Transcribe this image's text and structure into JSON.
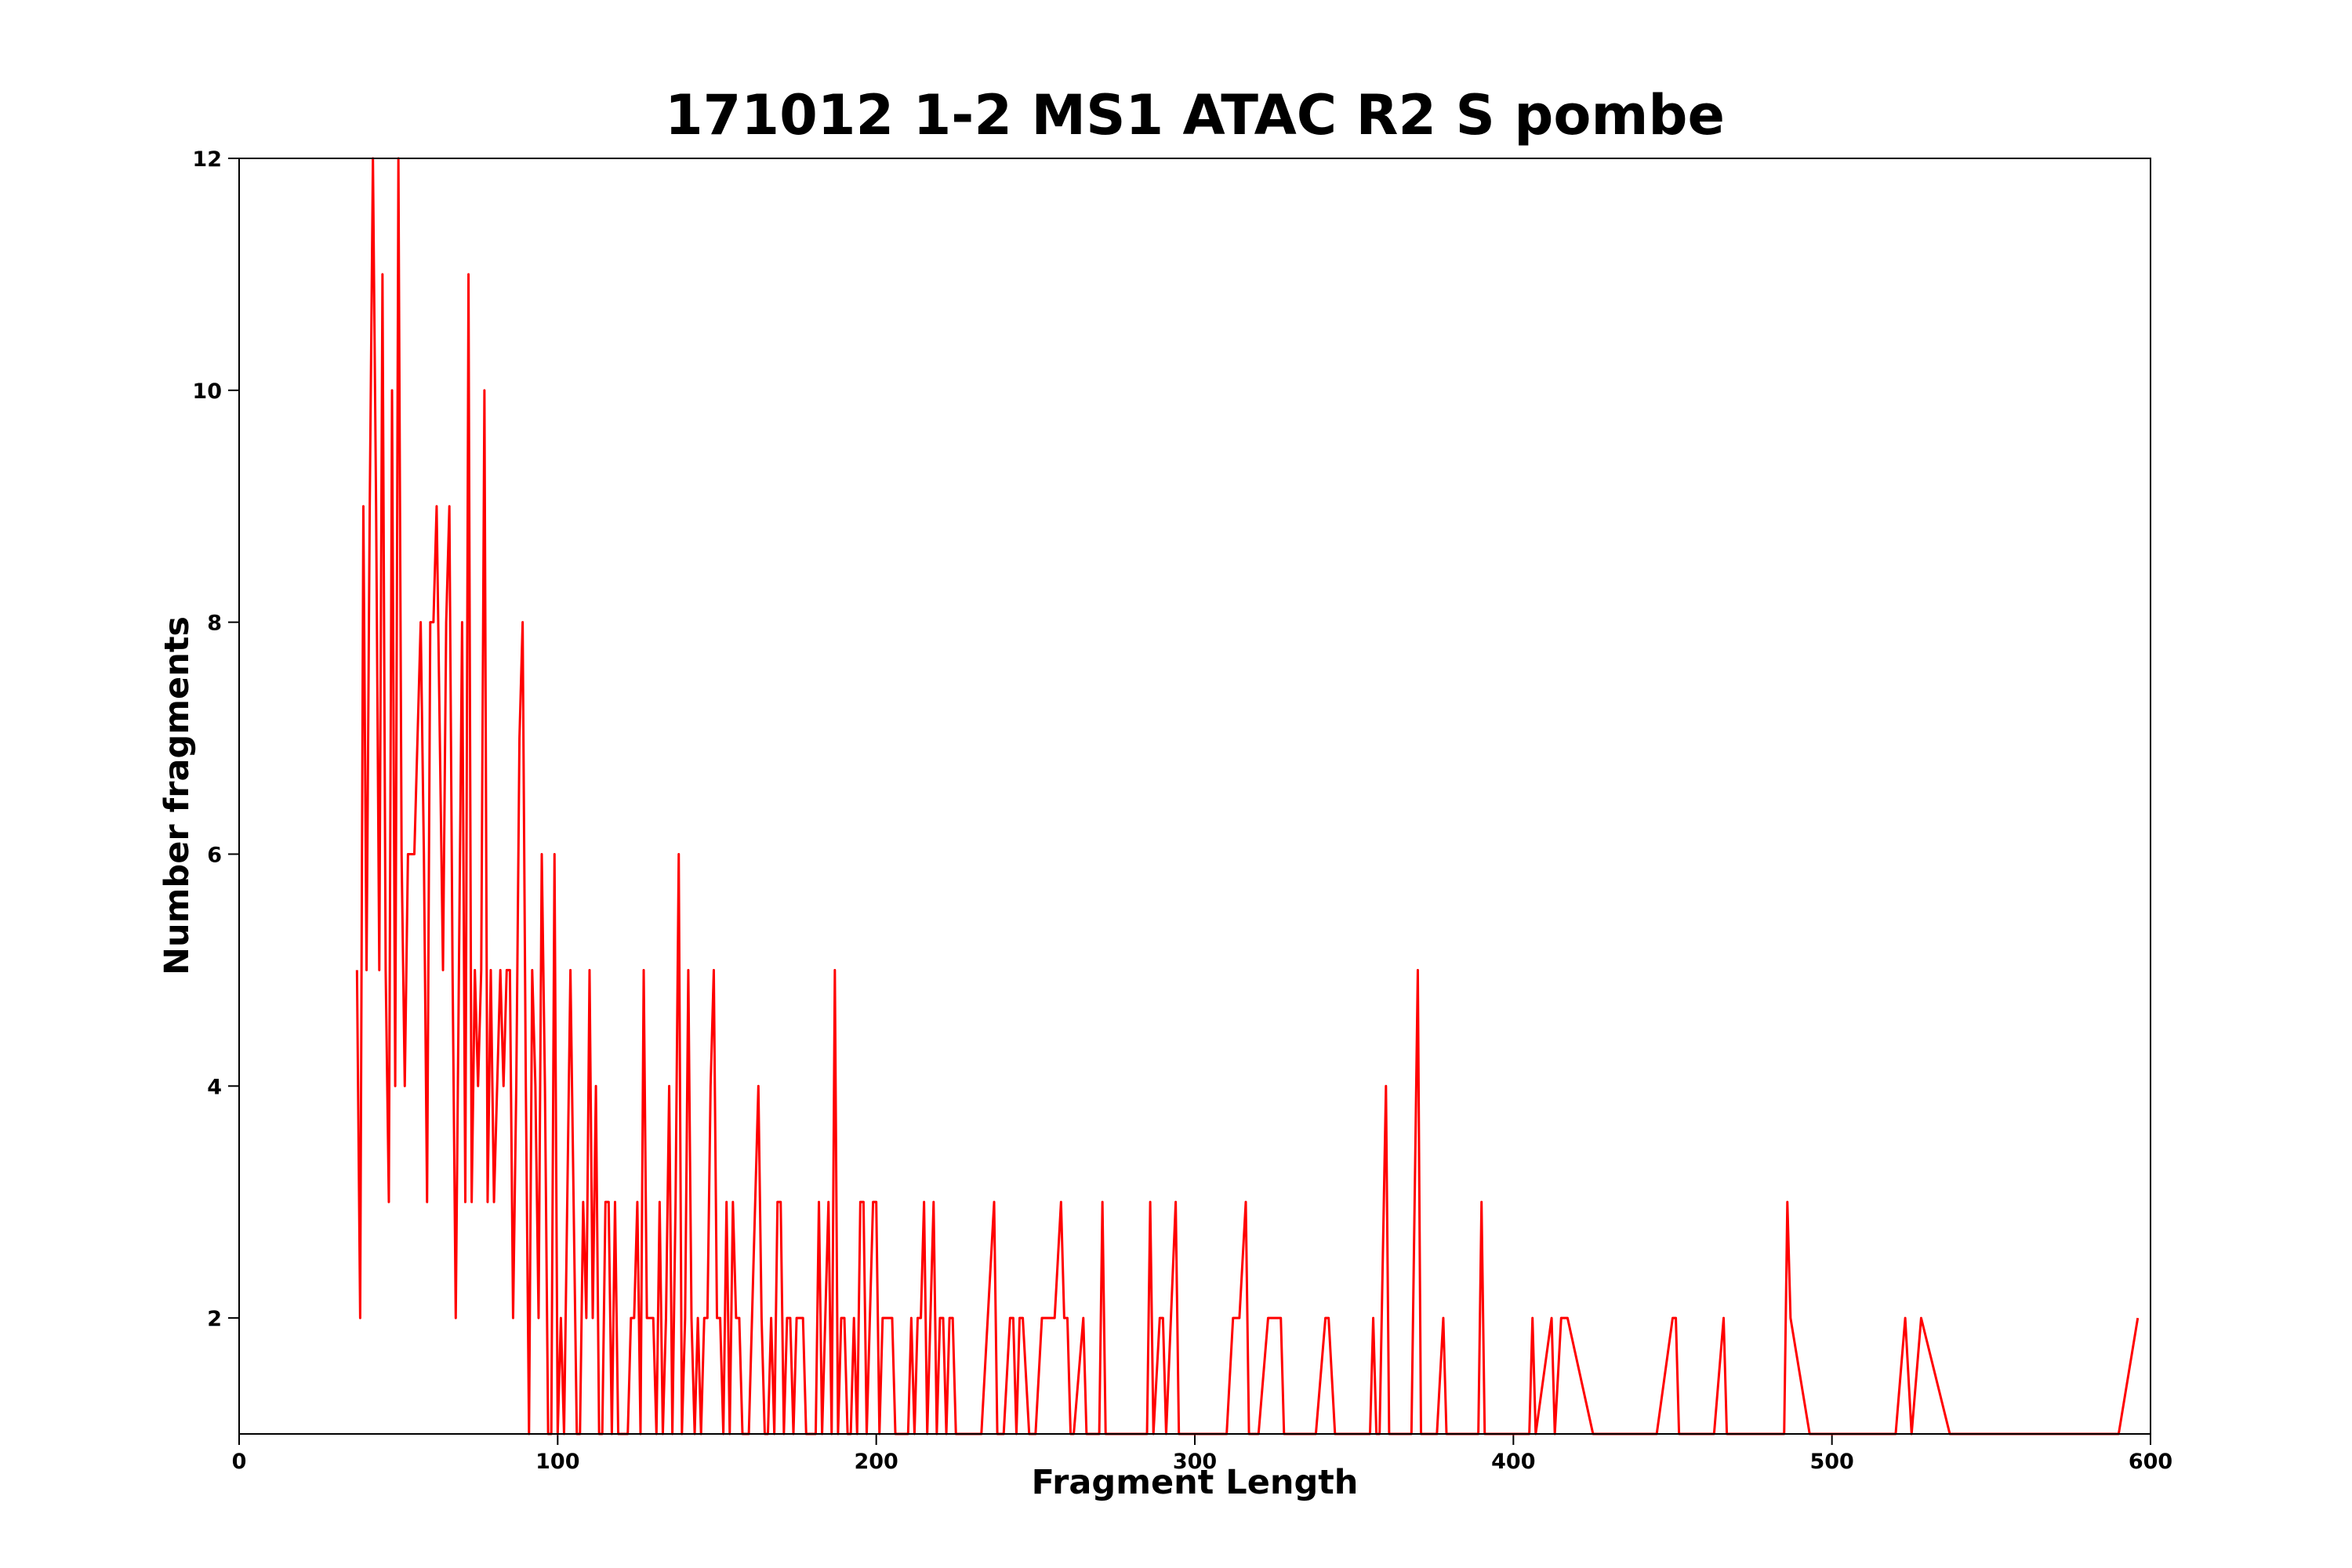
{
  "chart_data": {
    "type": "line",
    "title": "171012 1-2 MS1 ATAC R2 S pombe",
    "x_label": "Fragment Length",
    "y_label": "Number fragments",
    "color": "#ff0000",
    "xlim": [
      0,
      600
    ],
    "ylim": [
      1,
      12
    ],
    "xticks": [
      0,
      100,
      200,
      300,
      400,
      500,
      600
    ],
    "yticks": [
      2,
      4,
      6,
      8,
      10,
      12
    ],
    "x": [
      37,
      38,
      39,
      40,
      41,
      42,
      43,
      44,
      45,
      46,
      47,
      48,
      49,
      50,
      51,
      52,
      53,
      54,
      55,
      57,
      58,
      59,
      60,
      61,
      62,
      63,
      64,
      65,
      66,
      67,
      68,
      69,
      70,
      71,
      72,
      73,
      74,
      75,
      76,
      77,
      78,
      79,
      80,
      81,
      82,
      83,
      84,
      85,
      86,
      87,
      88,
      89,
      90,
      91,
      92,
      93,
      94,
      95,
      96,
      97,
      98,
      99,
      100,
      101,
      102,
      103,
      104,
      105,
      106,
      107,
      108,
      109,
      110,
      111,
      112,
      113,
      114,
      115,
      116,
      117,
      118,
      119,
      120,
      121,
      122,
      123,
      124,
      125,
      126,
      127,
      128,
      129,
      130,
      131,
      132,
      133,
      134,
      135,
      136,
      137,
      138,
      139,
      140,
      141,
      142,
      143,
      144,
      145,
      146,
      147,
      148,
      149,
      150,
      151,
      152,
      153,
      154,
      155,
      156,
      157,
      158,
      159,
      160,
      161,
      162,
      163,
      164,
      165,
      166,
      167,
      168,
      169,
      170,
      171,
      172,
      173,
      174,
      175,
      176,
      177,
      178,
      179,
      180,
      181,
      182,
      183,
      184,
      185,
      186,
      187,
      188,
      189,
      190,
      191,
      192,
      193,
      194,
      195,
      196,
      197,
      198,
      199,
      200,
      201,
      202,
      203,
      204,
      205,
      206,
      208,
      210,
      211,
      212,
      213,
      214,
      215,
      216,
      218,
      219,
      220,
      221,
      222,
      223,
      224,
      225,
      228,
      230,
      232,
      233,
      237,
      238,
      240,
      242,
      243,
      244,
      245,
      246,
      248,
      250,
      252,
      253,
      254,
      255,
      256,
      258,
      259,
      260,
      261,
      262,
      265,
      266,
      270,
      271,
      272,
      280,
      285,
      286,
      287,
      289,
      290,
      291,
      294,
      295,
      300,
      310,
      312,
      313,
      314,
      316,
      317,
      320,
      323,
      324,
      325,
      326,
      327,
      328,
      332,
      338,
      341,
      342,
      344,
      346,
      355,
      356,
      357,
      358,
      360,
      361,
      362,
      368,
      370,
      371,
      376,
      378,
      379,
      383,
      389,
      390,
      391,
      400,
      405,
      406,
      407,
      412,
      413,
      415,
      416,
      417,
      425,
      428,
      435,
      445,
      450,
      451,
      452,
      463,
      466,
      467,
      485,
      486,
      487,
      493,
      497,
      510,
      520,
      523,
      525,
      528,
      537,
      550,
      560,
      580,
      590,
      596
    ],
    "values": [
      5,
      2,
      9,
      5,
      9,
      12,
      9,
      5,
      11,
      5,
      3,
      10,
      4,
      12,
      6,
      4,
      6,
      6,
      6,
      8,
      6,
      3,
      8,
      8,
      9,
      7,
      5,
      8,
      9,
      5,
      2,
      5,
      8,
      3,
      11,
      3,
      5,
      4,
      5,
      10,
      3,
      5,
      3,
      4,
      5,
      4,
      5,
      5,
      2,
      4,
      7,
      8,
      4,
      1,
      5,
      4,
      2,
      6,
      4,
      1,
      1,
      6,
      1,
      2,
      1,
      3,
      5,
      3,
      1,
      1,
      3,
      2,
      5,
      2,
      4,
      1,
      1,
      3,
      3,
      1,
      3,
      1,
      1,
      1,
      1,
      2,
      2,
      3,
      1,
      5,
      2,
      2,
      2,
      1,
      3,
      1,
      2,
      4,
      1,
      3,
      6,
      1,
      2,
      5,
      2,
      1,
      2,
      1,
      2,
      2,
      4,
      5,
      2,
      2,
      1,
      3,
      1,
      3,
      2,
      2,
      1,
      1,
      1,
      2,
      3,
      4,
      2,
      1,
      1,
      2,
      1,
      3,
      3,
      1,
      2,
      2,
      1,
      2,
      2,
      2,
      1,
      1,
      1,
      1,
      3,
      1,
      2,
      3,
      1,
      5,
      1,
      2,
      2,
      1,
      1,
      2,
      1,
      3,
      3,
      1,
      2,
      3,
      3,
      1,
      2,
      2,
      2,
      2,
      1,
      1,
      1,
      2,
      1,
      2,
      2,
      3,
      1,
      3,
      1,
      2,
      2,
      1,
      2,
      2,
      1,
      1,
      1,
      1,
      1,
      3,
      1,
      1,
      2,
      2,
      1,
      2,
      2,
      1,
      1,
      2,
      2,
      2,
      2,
      2,
      3,
      2,
      2,
      1,
      1,
      2,
      1,
      1,
      3,
      1,
      1,
      1,
      3,
      1,
      2,
      2,
      1,
      3,
      1,
      1,
      1,
      2,
      2,
      2,
      3,
      1,
      1,
      2,
      2,
      2,
      2,
      2,
      1,
      1,
      1,
      2,
      2,
      1,
      1,
      1,
      2,
      1,
      1,
      4,
      1,
      1,
      1,
      5,
      1,
      1,
      2,
      1,
      1,
      1,
      3,
      1,
      1,
      1,
      2,
      1,
      2,
      1,
      2,
      2,
      2,
      1,
      1,
      1,
      1,
      2,
      2,
      1,
      1,
      2,
      1,
      1,
      3,
      2,
      1,
      1,
      1,
      1,
      2,
      1,
      2,
      1,
      1,
      1,
      1,
      1,
      2
    ]
  }
}
